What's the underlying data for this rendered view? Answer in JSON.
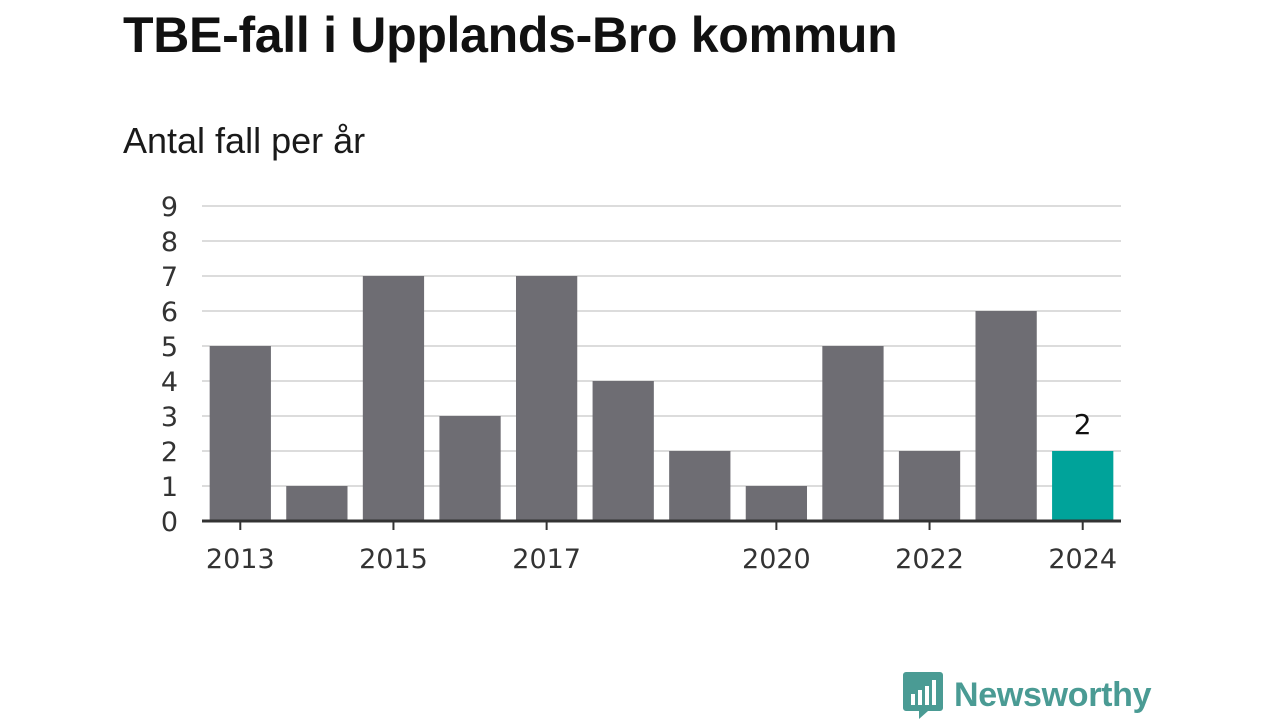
{
  "header": {
    "title": "TBE-fall i Upplands-Bro kommun",
    "subtitle": "Antal fall per år"
  },
  "brand": {
    "name": "Newsworthy",
    "icon": "newsworthy-logo-icon",
    "color": "#4a9b94"
  },
  "colors": {
    "bar": "#6e6d73",
    "highlight": "#00a39a",
    "grid": "#dcdcdc",
    "axis": "#333333"
  },
  "chart_data": {
    "type": "bar",
    "title": "TBE-fall i Upplands-Bro kommun",
    "subtitle": "Antal fall per år",
    "xlabel": "",
    "ylabel": "",
    "categories": [
      "2013",
      "2014",
      "2015",
      "2016",
      "2017",
      "2018",
      "2019",
      "2020",
      "2021",
      "2022",
      "2023",
      "2024"
    ],
    "values": [
      5,
      1,
      7,
      3,
      7,
      4,
      2,
      1,
      5,
      2,
      6,
      2
    ],
    "x_tick_labels": [
      "2013",
      "",
      "2015",
      "",
      "2017",
      "",
      "",
      "2020",
      "",
      "2022",
      "",
      "2024"
    ],
    "y_ticks": [
      0,
      1,
      2,
      3,
      4,
      5,
      6,
      7,
      8,
      9
    ],
    "ylim": [
      0,
      9
    ],
    "grid": true,
    "highlight_index": 11,
    "data_labels": [
      {
        "index": 11,
        "text": "2"
      }
    ]
  }
}
